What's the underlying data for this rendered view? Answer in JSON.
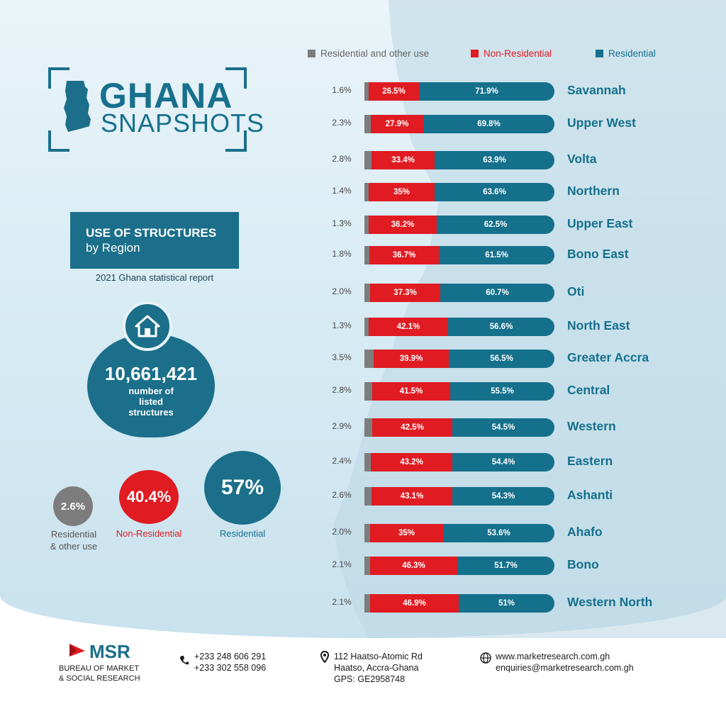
{
  "header": {
    "title": "GHANA",
    "subtitle": "SNAPSHOTS"
  },
  "panel": {
    "title_line1": "USE OF STRUCTURES",
    "title_line2": "by Region",
    "source": "2021 Ghana statistical report",
    "total_number": "10,661,421",
    "total_caption": [
      "number of",
      "listed",
      "structures"
    ],
    "national": {
      "other_value": "2.6%",
      "other_label": [
        "Residential",
        "& other use"
      ],
      "nonres_value": "40.4%",
      "nonres_label": "Non-Residential",
      "res_value": "57%",
      "res_label": "Residential"
    }
  },
  "colors": {
    "gray": "#7d7d7d",
    "red": "#e01b22",
    "blue": "#15708c",
    "brand": "#1b6f8a"
  },
  "chart_data": {
    "type": "bar",
    "orientation": "horizontal-stacked",
    "title": "USE OF STRUCTURES by Region",
    "legend": [
      "Residential and other use",
      "Non-Residential",
      "Residential"
    ],
    "categories": [
      "Savannah",
      "Upper West",
      "Volta",
      "Northern",
      "Upper East",
      "Bono East",
      "Oti",
      "North East",
      "Greater Accra",
      "Central",
      "Western",
      "Eastern",
      "Ashanti",
      "Ahafo",
      "Bono",
      "Western North"
    ],
    "series": [
      {
        "name": "Residential and other use",
        "values": [
          1.6,
          2.3,
          2.8,
          1.4,
          1.3,
          1.8,
          2.0,
          1.3,
          3.5,
          2.8,
          2.9,
          2.4,
          2.6,
          2.0,
          2.1,
          2.1
        ],
        "labels": [
          "1.6%",
          "2.3%",
          "2.8%",
          "1.4%",
          "1.3%",
          "1.8%",
          "2.0%",
          "1.3%",
          "3.5%",
          "2.8%",
          "2.9%",
          "2.4%",
          "2.6%",
          "2.0%",
          "2.1%",
          "2.1%"
        ]
      },
      {
        "name": "Non-Residential",
        "values": [
          26.5,
          27.9,
          33.4,
          35,
          36.2,
          36.7,
          37.3,
          42.1,
          39.9,
          41.5,
          42.5,
          43.2,
          43.1,
          35,
          46.3,
          46.9
        ],
        "labels": [
          "26.5%",
          "27.9%",
          "33.4%",
          "35%",
          "36.2%",
          "36.7%",
          "37.3%",
          "42.1%",
          "39.9%",
          "41.5%",
          "42.5%",
          "43.2%",
          "43.1%",
          "35%",
          "46.3%",
          "46.9%"
        ]
      },
      {
        "name": "Residential",
        "values": [
          71.9,
          69.8,
          63.9,
          63.6,
          62.5,
          61.5,
          60.7,
          56.6,
          56.5,
          55.5,
          54.5,
          54.4,
          54.3,
          53.6,
          51.7,
          51
        ],
        "labels": [
          "71.9%",
          "69.8%",
          "63.9%",
          "63.6%",
          "62.5%",
          "61.5%",
          "60.7%",
          "56.6%",
          "56.5%",
          "55.5%",
          "54.5%",
          "54.4%",
          "54.3%",
          "53.6%",
          "51.7%",
          "51%"
        ]
      }
    ]
  },
  "footer": {
    "brand_name": "MSR",
    "brand_line1": "BUREAU OF MARKET",
    "brand_line2": "& SOCIAL RESEARCH",
    "phone1": "+233 248 606 291",
    "phone2": "+233 302 558 096",
    "address1": "112 Haatso-Atomic Rd",
    "address2": "Haatso, Accra-Ghana",
    "address3": "GPS: GE2958748",
    "website": "www.marketresearch.com.gh",
    "email": "enquiries@marketresearch.com.gh"
  }
}
